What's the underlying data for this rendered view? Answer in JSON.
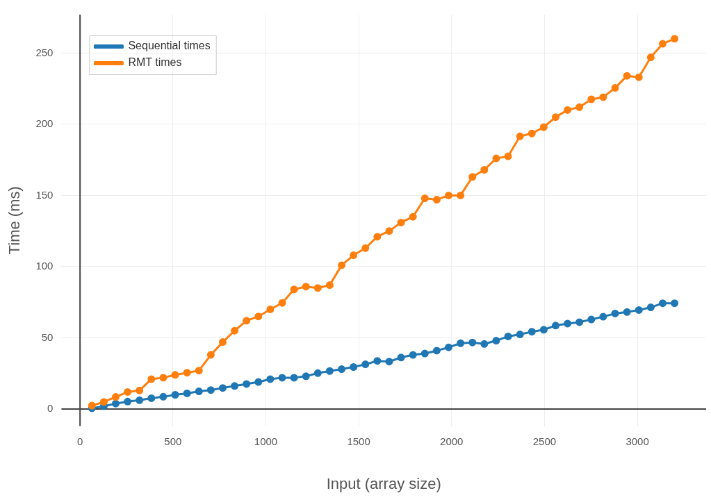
{
  "chart_data": {
    "type": "line",
    "xlabel": "Input (array size)",
    "ylabel": "Time (ms)",
    "x": [
      64,
      128,
      192,
      256,
      320,
      384,
      448,
      512,
      576,
      640,
      704,
      768,
      832,
      896,
      960,
      1024,
      1088,
      1152,
      1216,
      1280,
      1344,
      1408,
      1472,
      1536,
      1600,
      1664,
      1728,
      1792,
      1856,
      1920,
      1984,
      2048,
      2112,
      2176,
      2240,
      2304,
      2368,
      2432,
      2496,
      2560,
      2624,
      2688,
      2752,
      2816,
      2880,
      2944,
      3008,
      3072,
      3136,
      3200
    ],
    "series": [
      {
        "name": "Sequential times",
        "color": "#1f77b4",
        "values": [
          0.5,
          2,
          3.8,
          5.2,
          6.2,
          7.6,
          8.6,
          10,
          11,
          12.4,
          13.3,
          14.8,
          16.2,
          17.6,
          19,
          21,
          22,
          22,
          23,
          25.2,
          26.7,
          28,
          29.5,
          31.4,
          33.8,
          33.3,
          36.2,
          38,
          39,
          41,
          43.3,
          46.2,
          46.7,
          45.7,
          48,
          51,
          52.4,
          54.3,
          55.7,
          58.6,
          60,
          61,
          62.9,
          64.8,
          67.1,
          68.1,
          69.5,
          71.4,
          74.3,
          74.3
        ]
      },
      {
        "name": "RMT times",
        "color": "#ff7f0e",
        "values": [
          2.4,
          5,
          8.5,
          12,
          13,
          21,
          22,
          24,
          25.5,
          27,
          38,
          47,
          55,
          62,
          65,
          70,
          74.5,
          84,
          86,
          85,
          87,
          101,
          108,
          113,
          121,
          125,
          131,
          135,
          148,
          147,
          150,
          150,
          163,
          168,
          176,
          177.5,
          191.5,
          193.5,
          198,
          205,
          210,
          212,
          217.5,
          219,
          225.5,
          234,
          233,
          247,
          256.5,
          260
        ]
      }
    ],
    "xlim": [
      -100,
      3370
    ],
    "ylim": [
      -12,
      277
    ],
    "xticks": [
      0,
      500,
      1000,
      1500,
      2000,
      2500,
      3000
    ],
    "yticks": [
      0,
      50,
      100,
      150,
      200,
      250
    ],
    "grid": true,
    "legend": "top left",
    "marker": "circle",
    "line_style": "solid"
  }
}
